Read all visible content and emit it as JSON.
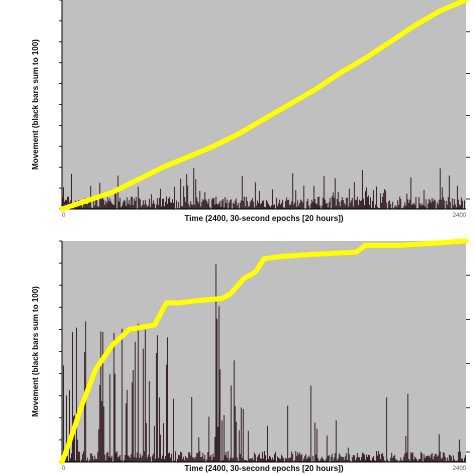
{
  "colors": {
    "plot_background": "#c0c0c0",
    "bars": "#2b1419",
    "cumulative_line": "#ffff00",
    "axis": "#000000"
  },
  "chart_data": [
    {
      "type": "bar",
      "overlay": "cumulative line",
      "xlabel": "Time (2400, 30-second epochs [20 hours])",
      "ylabel": "Movement (black bars sum to 100)",
      "x_tick_labels": [
        "0",
        "2400"
      ],
      "xlim": [
        0,
        2400
      ],
      "ylim": [
        0,
        1.0
      ],
      "grid": false,
      "bars_profile": "dense short bars, mostly below 0.1, a few peaks near 0.15-0.2",
      "cumulative": {
        "x": [
          0,
          150,
          300,
          450,
          600,
          750,
          900,
          1050,
          1200,
          1350,
          1500,
          1650,
          1800,
          1950,
          2100,
          2250,
          2400
        ],
        "y": [
          0.0,
          0.04,
          0.08,
          0.14,
          0.2,
          0.25,
          0.3,
          0.36,
          0.43,
          0.5,
          0.57,
          0.65,
          0.72,
          0.8,
          0.88,
          0.95,
          1.0
        ]
      }
    },
    {
      "type": "bar",
      "overlay": "cumulative line",
      "xlabel": "Time (2400, 30-second epochs [20 hours])",
      "ylabel": "Movement (black bars sum to 100)",
      "x_tick_labels": [
        "0",
        "2400"
      ],
      "xlim": [
        0,
        2400
      ],
      "ylim": [
        0,
        1.0
      ],
      "grid": false,
      "bars_profile": "sparse tall spikes clustered early (0-700) and mid (900-1050), many up to 0.6-0.95",
      "cumulative": {
        "x": [
          0,
          40,
          120,
          200,
          300,
          400,
          550,
          620,
          700,
          800,
          950,
          1000,
          1080,
          1150,
          1200,
          1300,
          1500,
          1750,
          1800,
          2000,
          2200,
          2400
        ],
        "y": [
          0.0,
          0.08,
          0.26,
          0.42,
          0.53,
          0.6,
          0.62,
          0.72,
          0.72,
          0.73,
          0.74,
          0.76,
          0.83,
          0.86,
          0.92,
          0.93,
          0.94,
          0.95,
          0.98,
          0.98,
          0.99,
          1.0
        ]
      }
    }
  ]
}
